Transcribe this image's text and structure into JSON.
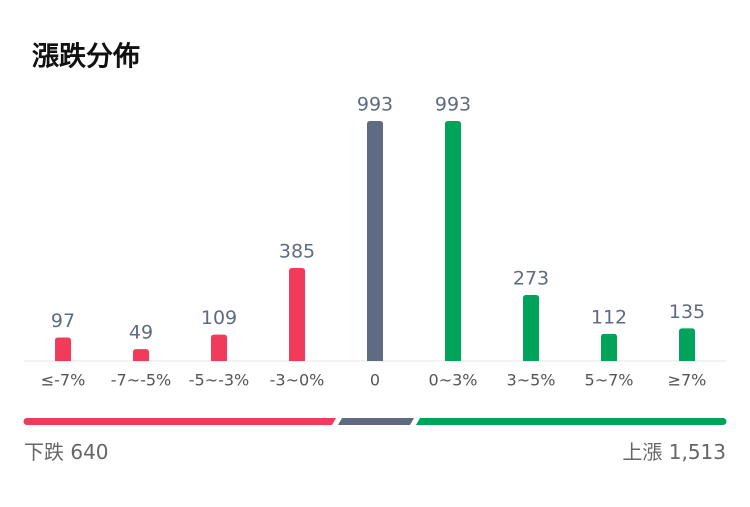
{
  "chart_data": {
    "type": "bar",
    "title": "漲跌分佈",
    "categories": [
      "≤-7%",
      "-7~-5%",
      "-5~-3%",
      "-3~0%",
      "0",
      "0~3%",
      "3~5%",
      "5~7%",
      "≥7%"
    ],
    "values": [
      97,
      49,
      109,
      385,
      993,
      993,
      273,
      112,
      135
    ],
    "colors": [
      "#f23a5b",
      "#f23a5b",
      "#f23a5b",
      "#f23a5b",
      "#5f6b82",
      "#00a35a",
      "#00a35a",
      "#00a35a",
      "#00a35a"
    ],
    "ylim": [
      0,
      993
    ],
    "summary": {
      "down": {
        "name": "下跌",
        "value": 640
      },
      "up": {
        "name": "上漲",
        "value": 1513,
        "value_label": "1,513"
      }
    }
  }
}
